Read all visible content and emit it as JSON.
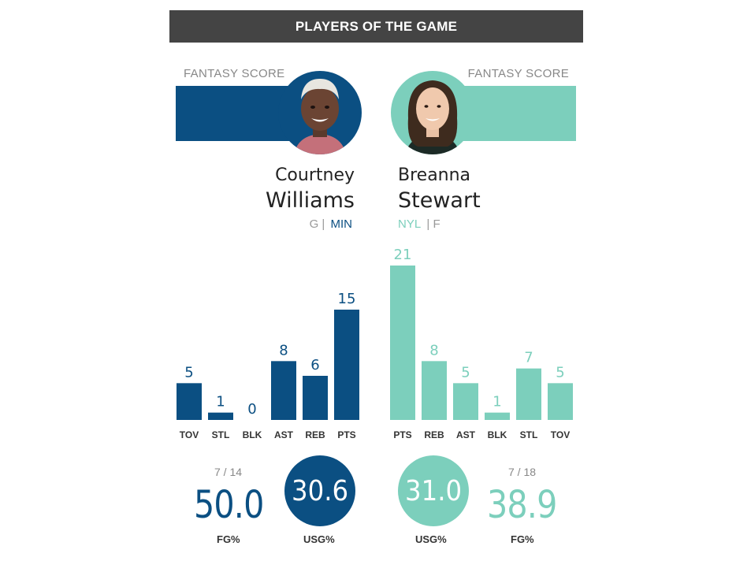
{
  "header": {
    "title": "PLAYERS OF THE GAME"
  },
  "colors": {
    "left": "#0b4f82",
    "right": "#7ccfbc",
    "header_bg": "#444444"
  },
  "players": [
    {
      "fantasy_label": "FANTASY SCORE",
      "first_name": "Courtney",
      "last_name": "Williams",
      "position": "G",
      "separator": "|",
      "team": "MIN",
      "fg_fraction": "7 / 14",
      "fg_pct": "50.0",
      "fg_label": "FG%",
      "usg": "30.6",
      "usg_label": "USG%"
    },
    {
      "fantasy_label": "FANTASY SCORE",
      "first_name": "Breanna",
      "last_name": "Stewart",
      "position": "F",
      "separator": "|",
      "team": "NYL",
      "fg_fraction": "7 / 18",
      "fg_pct": "38.9",
      "fg_label": "FG%",
      "usg": "31.0",
      "usg_label": "USG%"
    }
  ],
  "chart_data": [
    {
      "type": "bar",
      "categories": [
        "TOV",
        "STL",
        "BLK",
        "AST",
        "REB",
        "PTS"
      ],
      "values": [
        5,
        1,
        0,
        8,
        6,
        15
      ],
      "color": "#0b4f82",
      "ylim": [
        0,
        21
      ]
    },
    {
      "type": "bar",
      "categories": [
        "PTS",
        "REB",
        "AST",
        "BLK",
        "STL",
        "TOV"
      ],
      "values": [
        21,
        8,
        5,
        1,
        7,
        5
      ],
      "color": "#7ccfbc",
      "ylim": [
        0,
        21
      ]
    }
  ]
}
